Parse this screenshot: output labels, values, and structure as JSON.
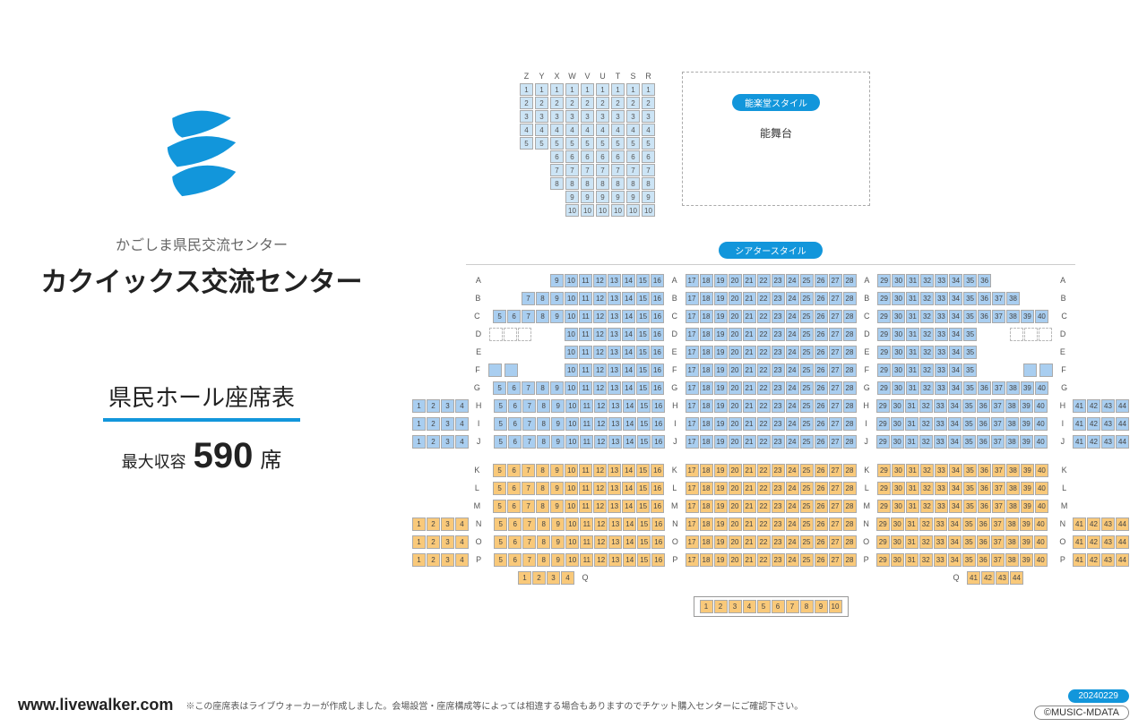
{
  "left": {
    "subtitle": "かごしま県民交流センター",
    "title": "カクイックス交流センター",
    "chart_title": "県民ホール座席表",
    "capacity_label": "最大収容",
    "capacity_num": "590",
    "capacity_unit": "席"
  },
  "noh": {
    "badge": "能楽堂スタイル",
    "stage_label": "能舞台",
    "cols": [
      {
        "h": "Z",
        "n": 5
      },
      {
        "h": "Y",
        "n": 5
      },
      {
        "h": "X",
        "n": 8
      },
      {
        "h": "W",
        "n": 10
      },
      {
        "h": "V",
        "n": 10
      },
      {
        "h": "U",
        "n": 10
      },
      {
        "h": "T",
        "n": 10
      },
      {
        "h": "S",
        "n": 10
      },
      {
        "h": "R",
        "n": 10
      }
    ]
  },
  "theater_badge": "シアタースタイル",
  "colors": {
    "blue": "#a9cef0",
    "orange": "#f9c97a"
  },
  "blue_rows": [
    {
      "l": "A",
      "far": [],
      "b1": [
        9,
        10,
        11,
        12,
        13,
        14,
        15,
        16
      ],
      "b2": [
        17,
        18,
        19,
        20,
        21,
        22,
        23,
        24,
        25,
        26,
        27,
        28
      ],
      "b3": [
        29,
        30,
        31,
        32,
        33,
        34,
        35,
        36
      ],
      "far2": []
    },
    {
      "l": "B",
      "far": [],
      "b1": [
        7,
        8,
        9,
        10,
        11,
        12,
        13,
        14,
        15,
        16
      ],
      "b2": [
        17,
        18,
        19,
        20,
        21,
        22,
        23,
        24,
        25,
        26,
        27,
        28
      ],
      "b3": [
        29,
        30,
        31,
        32,
        33,
        34,
        35,
        36,
        37,
        38
      ],
      "far2": []
    },
    {
      "l": "C",
      "far": [],
      "b1": [
        5,
        6,
        7,
        8,
        9,
        10,
        11,
        12,
        13,
        14,
        15,
        16
      ],
      "b2": [
        17,
        18,
        19,
        20,
        21,
        22,
        23,
        24,
        25,
        26,
        27,
        28
      ],
      "b3": [
        29,
        30,
        31,
        32,
        33,
        34,
        35,
        36,
        37,
        38,
        39,
        40
      ],
      "far2": []
    },
    {
      "l": "D",
      "far": [],
      "b1": [
        10,
        11,
        12,
        13,
        14,
        15,
        16
      ],
      "b2": [
        17,
        18,
        19,
        20,
        21,
        22,
        23,
        24,
        25,
        26,
        27,
        28
      ],
      "b3": [
        29,
        30,
        31,
        32,
        33,
        34,
        35
      ],
      "far2": [],
      "dashL": 3,
      "dashR": 3
    },
    {
      "l": "E",
      "far": [],
      "b1": [
        10,
        11,
        12,
        13,
        14,
        15,
        16
      ],
      "b2": [
        17,
        18,
        19,
        20,
        21,
        22,
        23,
        24,
        25,
        26,
        27,
        28
      ],
      "b3": [
        29,
        30,
        31,
        32,
        33,
        34,
        35
      ],
      "far2": []
    },
    {
      "l": "F",
      "far": [],
      "b1": [
        10,
        11,
        12,
        13,
        14,
        15,
        16
      ],
      "b2": [
        17,
        18,
        19,
        20,
        21,
        22,
        23,
        24,
        25,
        26,
        27,
        28
      ],
      "b3": [
        29,
        30,
        31,
        32,
        33,
        34,
        35
      ],
      "far2": [],
      "aisleL": 2,
      "aisleR": 2
    },
    {
      "l": "G",
      "far": [],
      "b1": [
        5,
        6,
        7,
        8,
        9,
        10,
        11,
        12,
        13,
        14,
        15,
        16
      ],
      "b2": [
        17,
        18,
        19,
        20,
        21,
        22,
        23,
        24,
        25,
        26,
        27,
        28
      ],
      "b3": [
        29,
        30,
        31,
        32,
        33,
        34,
        35,
        36,
        37,
        38,
        39,
        40
      ],
      "far2": []
    },
    {
      "l": "H",
      "far": [
        1,
        2,
        3,
        4
      ],
      "b1": [
        5,
        6,
        7,
        8,
        9,
        10,
        11,
        12,
        13,
        14,
        15,
        16
      ],
      "b2": [
        17,
        18,
        19,
        20,
        21,
        22,
        23,
        24,
        25,
        26,
        27,
        28
      ],
      "b3": [
        29,
        30,
        31,
        32,
        33,
        34,
        35,
        36,
        37,
        38,
        39,
        40
      ],
      "far2": [
        41,
        42,
        43,
        44
      ]
    },
    {
      "l": "I",
      "far": [
        1,
        2,
        3,
        4
      ],
      "b1": [
        5,
        6,
        7,
        8,
        9,
        10,
        11,
        12,
        13,
        14,
        15,
        16
      ],
      "b2": [
        17,
        18,
        19,
        20,
        21,
        22,
        23,
        24,
        25,
        26,
        27,
        28
      ],
      "b3": [
        29,
        30,
        31,
        32,
        33,
        34,
        35,
        36,
        37,
        38,
        39,
        40
      ],
      "far2": [
        41,
        42,
        43,
        44
      ]
    },
    {
      "l": "J",
      "far": [
        1,
        2,
        3,
        4
      ],
      "b1": [
        5,
        6,
        7,
        8,
        9,
        10,
        11,
        12,
        13,
        14,
        15,
        16
      ],
      "b2": [
        17,
        18,
        19,
        20,
        21,
        22,
        23,
        24,
        25,
        26,
        27,
        28
      ],
      "b3": [
        29,
        30,
        31,
        32,
        33,
        34,
        35,
        36,
        37,
        38,
        39,
        40
      ],
      "far2": [
        41,
        42,
        43,
        44
      ]
    }
  ],
  "orange_rows": [
    {
      "l": "K",
      "far": [],
      "b1": [
        5,
        6,
        7,
        8,
        9,
        10,
        11,
        12,
        13,
        14,
        15,
        16
      ],
      "b2": [
        17,
        18,
        19,
        20,
        21,
        22,
        23,
        24,
        25,
        26,
        27,
        28
      ],
      "b3": [
        29,
        30,
        31,
        32,
        33,
        34,
        35,
        36,
        37,
        38,
        39,
        40
      ],
      "far2": []
    },
    {
      "l": "L",
      "far": [],
      "b1": [
        5,
        6,
        7,
        8,
        9,
        10,
        11,
        12,
        13,
        14,
        15,
        16
      ],
      "b2": [
        17,
        18,
        19,
        20,
        21,
        22,
        23,
        24,
        25,
        26,
        27,
        28
      ],
      "b3": [
        29,
        30,
        31,
        32,
        33,
        34,
        35,
        36,
        37,
        38,
        39,
        40
      ],
      "far2": []
    },
    {
      "l": "M",
      "far": [],
      "b1": [
        5,
        6,
        7,
        8,
        9,
        10,
        11,
        12,
        13,
        14,
        15,
        16
      ],
      "b2": [
        17,
        18,
        19,
        20,
        21,
        22,
        23,
        24,
        25,
        26,
        27,
        28
      ],
      "b3": [
        29,
        30,
        31,
        32,
        33,
        34,
        35,
        36,
        37,
        38,
        39,
        40
      ],
      "far2": []
    },
    {
      "l": "N",
      "far": [
        1,
        2,
        3,
        4
      ],
      "b1": [
        5,
        6,
        7,
        8,
        9,
        10,
        11,
        12,
        13,
        14,
        15,
        16
      ],
      "b2": [
        17,
        18,
        19,
        20,
        21,
        22,
        23,
        24,
        25,
        26,
        27,
        28
      ],
      "b3": [
        29,
        30,
        31,
        32,
        33,
        34,
        35,
        36,
        37,
        38,
        39,
        40
      ],
      "far2": [
        41,
        42,
        43,
        44
      ]
    },
    {
      "l": "O",
      "far": [
        1,
        2,
        3,
        4
      ],
      "b1": [
        5,
        6,
        7,
        8,
        9,
        10,
        11,
        12,
        13,
        14,
        15,
        16
      ],
      "b2": [
        17,
        18,
        19,
        20,
        21,
        22,
        23,
        24,
        25,
        26,
        27,
        28
      ],
      "b3": [
        29,
        30,
        31,
        32,
        33,
        34,
        35,
        36,
        37,
        38,
        39,
        40
      ],
      "far2": [
        41,
        42,
        43,
        44
      ]
    },
    {
      "l": "P",
      "far": [
        1,
        2,
        3,
        4
      ],
      "b1": [
        5,
        6,
        7,
        8,
        9,
        10,
        11,
        12,
        13,
        14,
        15,
        16
      ],
      "b2": [
        17,
        18,
        19,
        20,
        21,
        22,
        23,
        24,
        25,
        26,
        27,
        28
      ],
      "b3": [
        29,
        30,
        31,
        32,
        33,
        34,
        35,
        36,
        37,
        38,
        39,
        40
      ],
      "far2": [
        41,
        42,
        43,
        44
      ]
    },
    {
      "l": "Q",
      "far": [
        1,
        2,
        3,
        4
      ],
      "b1": [],
      "b2": [],
      "b3": [],
      "far2": [
        41,
        42,
        43,
        44
      ]
    }
  ],
  "last_row": [
    1,
    2,
    3,
    4,
    5,
    6,
    7,
    8,
    9,
    10
  ],
  "footer": {
    "url": "www.livewalker.com",
    "note": "※この座席表はライブウォーカーが作成しました。会場設営・座席構成等によっては相違する場合もありますのでチケット購入センターにご確認下さい。",
    "date": "20240229",
    "copy": "©MUSIC-MDATA"
  }
}
